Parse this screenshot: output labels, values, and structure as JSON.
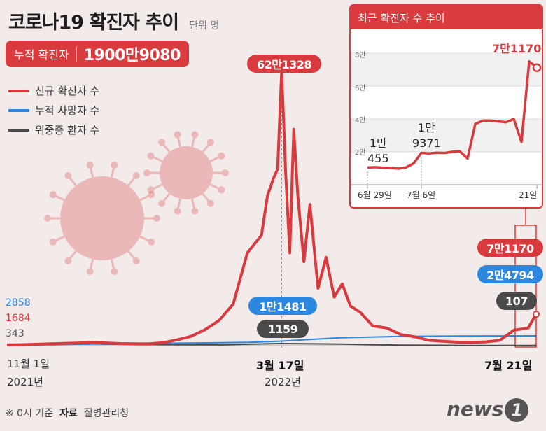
{
  "header": {
    "title": "코로나19 확진자 추이",
    "unit": "단위 명",
    "total_label": "누적 확진자",
    "total_value": "1900만9080"
  },
  "legend": [
    {
      "label": "신규 확진자 수",
      "color": "#d93a3d"
    },
    {
      "label": "누적 사망자 수",
      "color": "#2b87e0"
    },
    {
      "label": "위중증 환자 수",
      "color": "#4a4a4a"
    }
  ],
  "start_values": {
    "deaths": "2858",
    "new_cases": "1684",
    "severe": "343"
  },
  "peak": {
    "new_cases": "62만1328",
    "deaths": "1만1481",
    "severe": "1159"
  },
  "latest": {
    "new_cases": "7만1170",
    "deaths": "2만4794",
    "severe": "107"
  },
  "x_axis": {
    "start_date": "11월 1일",
    "start_year": "2021년",
    "mid_date": "3월 17일",
    "mid_year": "2022년",
    "end_date": "7월 21일"
  },
  "inset": {
    "title": "최근 확진자 수 추이",
    "y_ticks": [
      "8만",
      "6만",
      "4만",
      "2만"
    ],
    "x_ticks": [
      "6월 29일",
      "7월 6일",
      "21일"
    ],
    "annotations": {
      "start": [
        "1만",
        "455"
      ],
      "week": [
        "1만",
        "9371"
      ],
      "end": "7만1170"
    }
  },
  "footer": {
    "note_prefix": "※ 0시 기준",
    "source_label": "자료",
    "source_value": "질병관리청"
  },
  "logo": {
    "text": "news",
    "mark": "1"
  },
  "chart_data": [
    {
      "type": "line",
      "title": "코로나19 확진자 추이",
      "x_range": [
        "2021-11-01",
        "2022-07-21"
      ],
      "series": [
        {
          "name": "신규 확진자 수",
          "color": "#d93a3d",
          "x": [
            "2021-11-01",
            "2021-11-08",
            "2021-11-15",
            "2021-11-22",
            "2021-11-29",
            "2021-12-06",
            "2021-12-13",
            "2021-12-20",
            "2021-12-27",
            "2022-01-03",
            "2022-01-10",
            "2022-01-17",
            "2022-01-24",
            "2022-01-31",
            "2022-02-07",
            "2022-02-14",
            "2022-02-21",
            "2022-02-28",
            "2022-03-07",
            "2022-03-10",
            "2022-03-13",
            "2022-03-15",
            "2022-03-17",
            "2022-03-19",
            "2022-03-21",
            "2022-03-23",
            "2022-03-25",
            "2022-03-28",
            "2022-03-31",
            "2022-04-04",
            "2022-04-08",
            "2022-04-12",
            "2022-04-16",
            "2022-04-20",
            "2022-04-25",
            "2022-05-01",
            "2022-05-08",
            "2022-05-15",
            "2022-05-22",
            "2022-05-29",
            "2022-06-05",
            "2022-06-12",
            "2022-06-19",
            "2022-06-26",
            "2022-07-03",
            "2022-07-10",
            "2022-07-17",
            "2022-07-21"
          ],
          "values": [
            1684,
            2200,
            3200,
            4100,
            5100,
            6000,
            7400,
            6200,
            4800,
            4400,
            4200,
            6500,
            13000,
            21000,
            36000,
            57000,
            94000,
            210000,
            250000,
            340000,
            380000,
            400000,
            621328,
            390000,
            210000,
            490000,
            340000,
            190000,
            320000,
            130000,
            200000,
            110000,
            140000,
            90000,
            75000,
            45000,
            40000,
            25000,
            20000,
            12000,
            10000,
            8000,
            7500,
            8500,
            12000,
            35000,
            40000,
            71170
          ]
        },
        {
          "name": "누적 사망자 수",
          "color": "#2b87e0",
          "x": [
            "2021-11-01",
            "2021-12-01",
            "2022-01-01",
            "2022-02-01",
            "2022-03-01",
            "2022-03-17",
            "2022-04-15",
            "2022-05-15",
            "2022-06-15",
            "2022-07-21"
          ],
          "values": [
            2858,
            3600,
            5600,
            6800,
            8300,
            11481,
            20000,
            23500,
            24500,
            24794
          ]
        },
        {
          "name": "위중증 환자 수",
          "color": "#4a4a4a",
          "x": [
            "2021-11-01",
            "2021-12-15",
            "2022-01-15",
            "2022-02-15",
            "2022-03-17",
            "2022-04-15",
            "2022-05-15",
            "2022-06-15",
            "2022-07-21"
          ],
          "values": [
            343,
            900,
            600,
            500,
            1159,
            900,
            300,
            100,
            107
          ]
        }
      ]
    },
    {
      "type": "line",
      "title": "최근 확진자 수 추이",
      "ylim": [
        0,
        80000
      ],
      "series": [
        {
          "name": "신규 확진자 수",
          "color": "#d93a3d",
          "x": [
            "2022-06-29",
            "2022-06-30",
            "2022-07-01",
            "2022-07-02",
            "2022-07-03",
            "2022-07-04",
            "2022-07-05",
            "2022-07-06",
            "2022-07-07",
            "2022-07-08",
            "2022-07-09",
            "2022-07-10",
            "2022-07-11",
            "2022-07-12",
            "2022-07-13",
            "2022-07-14",
            "2022-07-15",
            "2022-07-16",
            "2022-07-17",
            "2022-07-18",
            "2022-07-19",
            "2022-07-20",
            "2022-07-21"
          ],
          "values": [
            10455,
            10700,
            10400,
            10200,
            9800,
            10500,
            13000,
            19371,
            19000,
            19500,
            19300,
            20000,
            20300,
            16000,
            37000,
            39000,
            39000,
            38500,
            38000,
            40000,
            26000,
            75000,
            71170
          ]
        }
      ]
    }
  ]
}
